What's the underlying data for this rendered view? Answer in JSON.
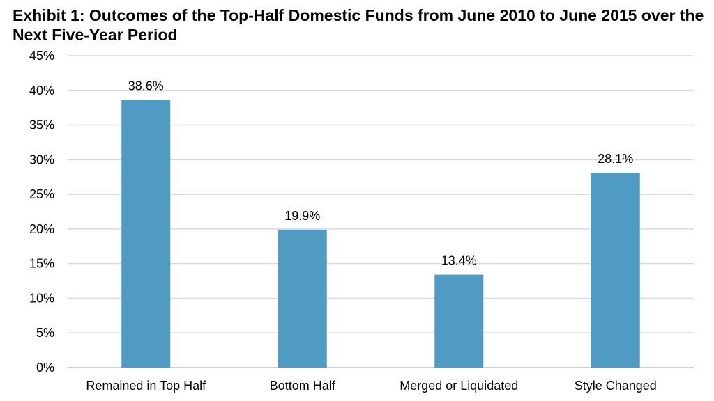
{
  "chart_data": {
    "type": "bar",
    "title": "Exhibit 1: Outcomes of the Top-Half Domestic Funds from June 2010 to June 2015 over the Next Five-Year Period",
    "xlabel": "",
    "ylabel": "",
    "categories": [
      "Remained in Top Half",
      "Bottom Half",
      "Merged or Liquidated",
      "Style Changed"
    ],
    "values": [
      38.6,
      19.9,
      13.4,
      28.1
    ],
    "data_labels": [
      "38.6%",
      "19.9%",
      "13.4%",
      "28.1%"
    ],
    "ylim": [
      0,
      45
    ],
    "y_ticks": [
      0,
      5,
      10,
      15,
      20,
      25,
      30,
      35,
      40,
      45
    ],
    "y_tick_labels": [
      "0%",
      "5%",
      "10%",
      "15%",
      "20%",
      "25%",
      "30%",
      "35%",
      "40%",
      "45%"
    ],
    "grid": true,
    "legend": "none",
    "bar_color": "#4f9bc4",
    "grid_color": "#d9d9d9"
  }
}
